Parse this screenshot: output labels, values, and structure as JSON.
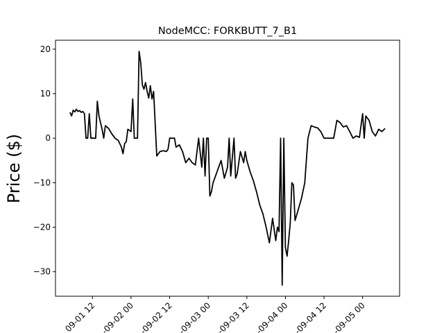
{
  "chart_data": {
    "type": "line",
    "title": "NodeMCC: FORKBUTT_7_B1",
    "xlabel": "",
    "ylabel": "Price ($)",
    "xlim": [
      "2018-09-01 00:30",
      "2018-09-05 11:30"
    ],
    "ylim": [
      -35.5,
      22
    ],
    "x_ticks": [
      "09-01 12",
      "09-02 00",
      "09-02 12",
      "09-03 00",
      "09-03 12",
      "09-04 00",
      "09-04 12",
      "09-05 00"
    ],
    "x_tick_display": [
      "09-01 12",
      "-09-02 00",
      "-09-02 12",
      "-09-03 00",
      "-09-03 12",
      "-09-04 00",
      "-09-04 12",
      "-09-05 00"
    ],
    "y_ticks": [
      20,
      10,
      0,
      -10,
      -20,
      -30
    ],
    "y_tick_labels": [
      "20",
      "10",
      "0",
      "−10",
      "−20",
      "−30"
    ],
    "grid": false,
    "legend": "none",
    "line_color": "#000000",
    "series": [
      {
        "x": [
          "2018-09-01 05:00",
          "2018-09-01 05:30",
          "2018-09-01 06:00",
          "2018-09-01 06:30",
          "2018-09-01 07:00",
          "2018-09-01 07:30",
          "2018-09-01 08:00",
          "2018-09-01 08:30",
          "2018-09-01 09:00",
          "2018-09-01 09:30",
          "2018-09-01 10:00",
          "2018-09-01 10:30",
          "2018-09-01 11:00",
          "2018-09-01 11:30",
          "2018-09-01 12:00",
          "2018-09-01 12:30",
          "2018-09-01 13:00",
          "2018-09-01 13:30",
          "2018-09-01 14:00",
          "2018-09-01 15:00",
          "2018-09-01 15:30",
          "2018-09-01 16:00",
          "2018-09-01 17:00",
          "2018-09-01 18:00",
          "2018-09-01 19:00",
          "2018-09-01 20:00",
          "2018-09-01 21:00",
          "2018-09-01 21:30",
          "2018-09-01 22:00",
          "2018-09-01 22:30",
          "2018-09-01 23:00",
          "2018-09-02 00:00",
          "2018-09-02 00:30",
          "2018-09-02 01:00",
          "2018-09-02 01:30",
          "2018-09-02 02:00",
          "2018-09-02 02:30",
          "2018-09-02 03:00",
          "2018-09-02 03:30",
          "2018-09-02 04:00",
          "2018-09-02 04:30",
          "2018-09-02 05:00",
          "2018-09-02 05:30",
          "2018-09-02 06:00",
          "2018-09-02 06:30",
          "2018-09-02 07:00",
          "2018-09-02 08:00",
          "2018-09-02 09:00",
          "2018-09-02 10:00",
          "2018-09-02 11:00",
          "2018-09-02 11:30",
          "2018-09-02 12:00",
          "2018-09-02 13:00",
          "2018-09-02 13:30",
          "2018-09-02 14:00",
          "2018-09-02 15:00",
          "2018-09-02 16:00",
          "2018-09-02 17:00",
          "2018-09-02 18:00",
          "2018-09-02 19:00",
          "2018-09-02 20:00",
          "2018-09-02 21:00",
          "2018-09-02 22:00",
          "2018-09-02 22:30",
          "2018-09-02 23:00",
          "2018-09-02 23:30",
          "2018-09-03 00:00",
          "2018-09-03 00:30",
          "2018-09-03 01:00",
          "2018-09-03 01:30",
          "2018-09-03 02:00",
          "2018-09-03 03:00",
          "2018-09-03 04:00",
          "2018-09-03 05:00",
          "2018-09-03 06:00",
          "2018-09-03 06:30",
          "2018-09-03 07:00",
          "2018-09-03 08:00",
          "2018-09-03 08:30",
          "2018-09-03 09:00",
          "2018-09-03 10:00",
          "2018-09-03 11:00",
          "2018-09-03 11:30",
          "2018-09-03 12:00",
          "2018-09-03 13:00",
          "2018-09-03 14:00",
          "2018-09-03 15:00",
          "2018-09-03 16:00",
          "2018-09-03 17:00",
          "2018-09-03 18:00",
          "2018-09-03 19:00",
          "2018-09-03 20:00",
          "2018-09-03 21:00",
          "2018-09-03 21:30",
          "2018-09-03 22:00",
          "2018-09-03 22:30",
          "2018-09-03 23:00",
          "2018-09-03 23:30",
          "2018-09-04 00:00",
          "2018-09-04 00:30",
          "2018-09-04 01:00",
          "2018-09-04 01:30",
          "2018-09-04 02:00",
          "2018-09-04 02:30",
          "2018-09-04 03:00",
          "2018-09-04 04:00",
          "2018-09-04 05:00",
          "2018-09-04 06:00",
          "2018-09-04 07:00",
          "2018-09-04 08:00",
          "2018-09-04 09:00",
          "2018-09-04 10:00",
          "2018-09-04 11:00",
          "2018-09-04 12:00",
          "2018-09-04 13:00",
          "2018-09-04 14:00",
          "2018-09-04 15:00",
          "2018-09-04 16:00",
          "2018-09-04 17:00",
          "2018-09-04 18:00",
          "2018-09-04 19:00",
          "2018-09-04 20:00",
          "2018-09-04 21:00",
          "2018-09-04 22:00",
          "2018-09-04 23:00",
          "2018-09-05 00:00",
          "2018-09-05 00:30",
          "2018-09-05 01:00",
          "2018-09-05 02:00",
          "2018-09-05 03:00",
          "2018-09-05 04:00",
          "2018-09-05 05:00",
          "2018-09-05 06:00",
          "2018-09-05 07:00"
        ],
        "y": [
          5.8,
          5.0,
          6.3,
          5.9,
          6.5,
          6.0,
          6.2,
          5.8,
          6.0,
          5.5,
          0.0,
          0.0,
          5.5,
          0.0,
          0.0,
          0.0,
          0.0,
          8.3,
          5.0,
          2.0,
          0.0,
          2.8,
          2.2,
          1.0,
          0.0,
          -0.5,
          -2.0,
          -3.5,
          -1.2,
          -0.8,
          2.0,
          1.5,
          8.8,
          0.0,
          0.0,
          0.0,
          19.5,
          17.0,
          12.0,
          11.0,
          12.5,
          10.5,
          9.0,
          11.8,
          8.8,
          10.5,
          -4.0,
          -3.0,
          -2.8,
          -3.0,
          -2.5,
          0.0,
          0.0,
          0.0,
          -2.0,
          -1.5,
          -3.0,
          -5.5,
          -4.5,
          -5.5,
          -6.0,
          0.0,
          -6.5,
          0.0,
          -8.5,
          0.0,
          0.0,
          -13.0,
          -12.0,
          -10.0,
          -9.0,
          -7.0,
          -5.0,
          -9.0,
          -6.5,
          0.0,
          -8.5,
          0.0,
          -9.0,
          -8.0,
          -3.0,
          -5.5,
          -3.0,
          -5.0,
          -7.5,
          -9.5,
          -12.0,
          -15.0,
          -17.0,
          -20.0,
          -23.5,
          -18.0,
          -23.0,
          -20.0,
          -21.0,
          0.0,
          -33.0,
          0.0,
          -24.5,
          -26.5,
          -23.0,
          -19.0,
          -10.0,
          -10.5,
          -18.5,
          -16.0,
          -13.5,
          -10.0,
          0.0,
          2.8,
          2.5,
          2.3,
          1.5,
          0.0,
          0.0,
          0.0,
          0.0,
          4.0,
          3.5,
          2.5,
          2.8,
          1.5,
          0.0,
          0.5,
          0.2,
          5.5,
          0.0,
          5.0,
          4.0,
          1.5,
          0.5,
          2.0,
          1.5,
          2.2
        ]
      }
    ]
  }
}
